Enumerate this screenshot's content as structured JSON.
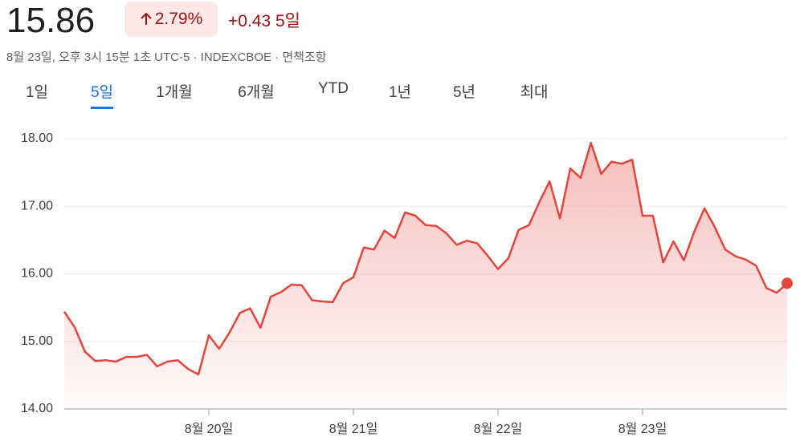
{
  "header": {
    "price": "15.86",
    "change_pct": "2.79%",
    "change": "+0.43",
    "period": "5일",
    "subtitle": "8월 23일, 오후 3시 15분 1초 UTC-5 · INDEXCBOE · 면책조항"
  },
  "tabs": [
    "1일",
    "5일",
    "1개월",
    "6개월",
    "YTD",
    "1년",
    "5년",
    "최대"
  ],
  "selected_tab": 1,
  "chart_data": {
    "type": "line",
    "color": "#e5443b",
    "grid": true,
    "categories": [
      null,
      null,
      null,
      null,
      null,
      null,
      null,
      null,
      null,
      null,
      null,
      null,
      null,
      null,
      "8월 20일",
      null,
      null,
      null,
      null,
      null,
      null,
      null,
      null,
      null,
      null,
      null,
      null,
      null,
      "8월 21일",
      null,
      null,
      null,
      null,
      null,
      null,
      null,
      null,
      null,
      null,
      null,
      null,
      null,
      "8월 22일",
      null,
      null,
      null,
      null,
      null,
      null,
      null,
      null,
      null,
      null,
      null,
      null,
      null,
      "8월 23일",
      null,
      null,
      null,
      null,
      null,
      null,
      null,
      null,
      null,
      null,
      null,
      null,
      null,
      null
    ],
    "values": [
      15.44,
      15.21,
      14.85,
      14.71,
      14.72,
      14.7,
      14.77,
      14.77,
      14.8,
      14.63,
      14.7,
      14.72,
      14.59,
      14.51,
      15.09,
      14.89,
      15.13,
      15.42,
      15.49,
      15.2,
      15.66,
      15.73,
      15.84,
      15.83,
      15.61,
      15.59,
      15.58,
      15.86,
      15.95,
      16.39,
      16.36,
      16.64,
      16.53,
      16.91,
      16.86,
      16.72,
      16.71,
      16.6,
      16.43,
      16.49,
      16.45,
      16.27,
      16.07,
      16.23,
      16.65,
      16.72,
      17.06,
      17.37,
      16.82,
      17.56,
      17.42,
      17.94,
      17.48,
      17.66,
      17.63,
      17.69,
      16.86,
      16.86,
      16.17,
      16.48,
      16.2,
      16.62,
      16.97,
      16.69,
      16.36,
      16.26,
      16.21,
      16.12,
      15.79,
      15.72,
      15.86
    ],
    "ylim": [
      14,
      18
    ],
    "yticks": [
      {
        "value": 14,
        "label": "14.00"
      },
      {
        "value": 15,
        "label": "15.00"
      },
      {
        "value": 16,
        "label": "16.00"
      },
      {
        "value": 17,
        "label": "17.00"
      },
      {
        "value": 18,
        "label": "18.00"
      }
    ]
  }
}
